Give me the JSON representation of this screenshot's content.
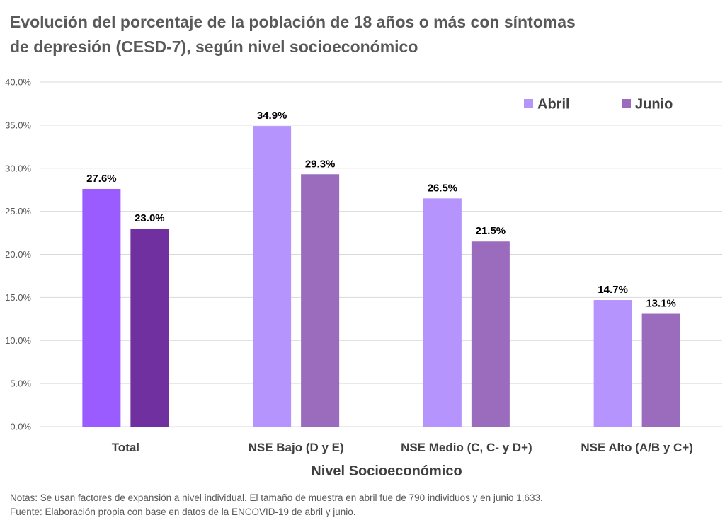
{
  "title": {
    "line1": "Evolución del porcentaje de la población de 18 años o más con síntomas",
    "line2": "de depresión (CESD-7), según nivel socioeconómico"
  },
  "notes": {
    "note": "Notas: Se usan factores de expansión a nivel individual.  El tamaño de muestra en abril fue de 790 individuos y en junio 1,633.",
    "source": "Fuente: Elaboración propia con base en datos de la ENCOVID-19 de abril y junio."
  },
  "chart_data": {
    "type": "bar",
    "title": "Evolución del porcentaje de la población de 18 años o más con síntomas de depresión (CESD-7), según nivel socioeconómico",
    "xlabel": "Nivel Socioeconómico",
    "ylabel": "",
    "categories": [
      "Total",
      "NSE Bajo (D y E)",
      "NSE Medio (C, C- y D+)",
      "NSE Alto (A/B y C+)"
    ],
    "series": [
      {
        "name": "Abril",
        "values": [
          27.6,
          34.9,
          26.5,
          14.7
        ],
        "color": "#B694FE"
      },
      {
        "name": "Junio",
        "values": [
          23.0,
          29.3,
          21.5,
          13.1
        ],
        "color": "#9B6BBD"
      }
    ],
    "total_bar_colors": [
      "#9B5CFF",
      "#7030A0"
    ],
    "value_labels": [
      [
        "27.6%",
        "34.9%",
        "26.5%",
        "14.7%"
      ],
      [
        "23.0%",
        "29.3%",
        "21.5%",
        "13.1%"
      ]
    ],
    "y_ticks": [
      "0.0%",
      "5.0%",
      "10.0%",
      "15.0%",
      "20.0%",
      "25.0%",
      "30.0%",
      "35.0%",
      "40.0%"
    ],
    "ylim": [
      0,
      40
    ],
    "y_step": 5,
    "grid": true,
    "legend_position": "top-right"
  }
}
